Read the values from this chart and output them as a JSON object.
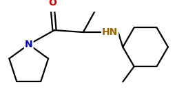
{
  "background": "#ffffff",
  "bond_color": "#000000",
  "atom_colors": {
    "O": "#cc0000",
    "N_pyrrolidine": "#0000bb",
    "HN": "#996600"
  },
  "line_width": 1.6,
  "font_size_atom": 10,
  "figure_size": [
    2.55,
    1.49
  ],
  "dpi": 100
}
